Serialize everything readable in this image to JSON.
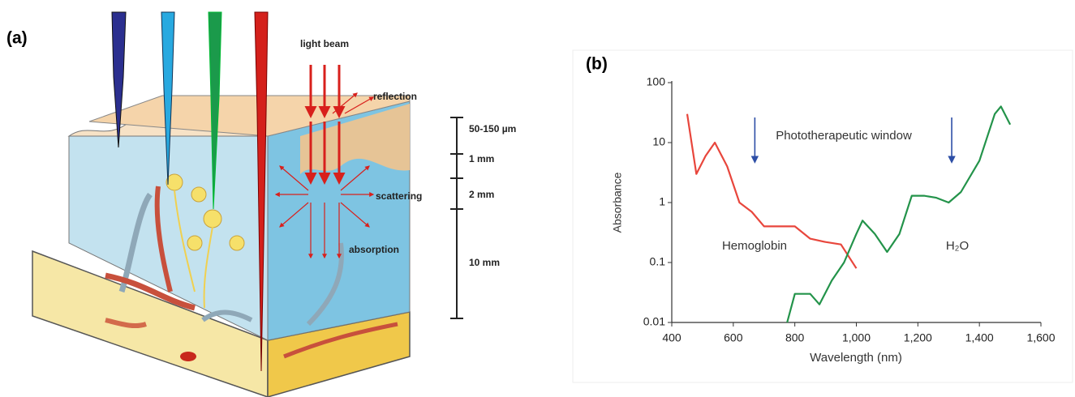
{
  "panel_a": {
    "label": "(a)",
    "light_beam": "light beam",
    "reflection": "reflection",
    "scattering": "scattering",
    "absorption": "absorption",
    "depths": [
      "50-150 µm",
      "1 mm",
      "2 mm",
      "10 mm"
    ]
  },
  "chart_data": {
    "type": "line",
    "panel_label": "(b)",
    "xlabel": "Wavelength (nm)",
    "ylabel": "Absorbance",
    "log_y": true,
    "xlim": [
      400,
      1600
    ],
    "ylim": [
      0.01,
      100
    ],
    "xticks": [
      400,
      600,
      800,
      {
        "value": 1000,
        "label": "1,000"
      },
      {
        "value": 1200,
        "label": "1,200"
      },
      {
        "value": 1400,
        "label": "1,400"
      },
      {
        "value": 1600,
        "label": "1,600"
      }
    ],
    "yticks": [
      0.01,
      0.1,
      1,
      10,
      100
    ],
    "annotation": "Phototherapeutic window",
    "window_x": [
      670,
      1310
    ],
    "series": [
      {
        "name": "Hemoglobin",
        "color": "#e8463c",
        "x": [
          450,
          480,
          510,
          540,
          580,
          620,
          660,
          700,
          760,
          800,
          850,
          900,
          950,
          1000
        ],
        "values": [
          30,
          3,
          6,
          10,
          4,
          1,
          0.7,
          0.4,
          0.4,
          0.4,
          0.25,
          0.22,
          0.2,
          0.08
        ]
      },
      {
        "name": "H₂O",
        "color": "#23934a",
        "x": [
          775,
          800,
          850,
          880,
          920,
          960,
          1000,
          1020,
          1060,
          1100,
          1140,
          1180,
          1220,
          1260,
          1300,
          1340,
          1400,
          1450,
          1470,
          1500
        ],
        "values": [
          0.01,
          0.03,
          0.03,
          0.02,
          0.05,
          0.1,
          0.3,
          0.5,
          0.3,
          0.15,
          0.3,
          1.3,
          1.3,
          1.2,
          1.0,
          1.5,
          5,
          30,
          40,
          20
        ]
      }
    ]
  }
}
